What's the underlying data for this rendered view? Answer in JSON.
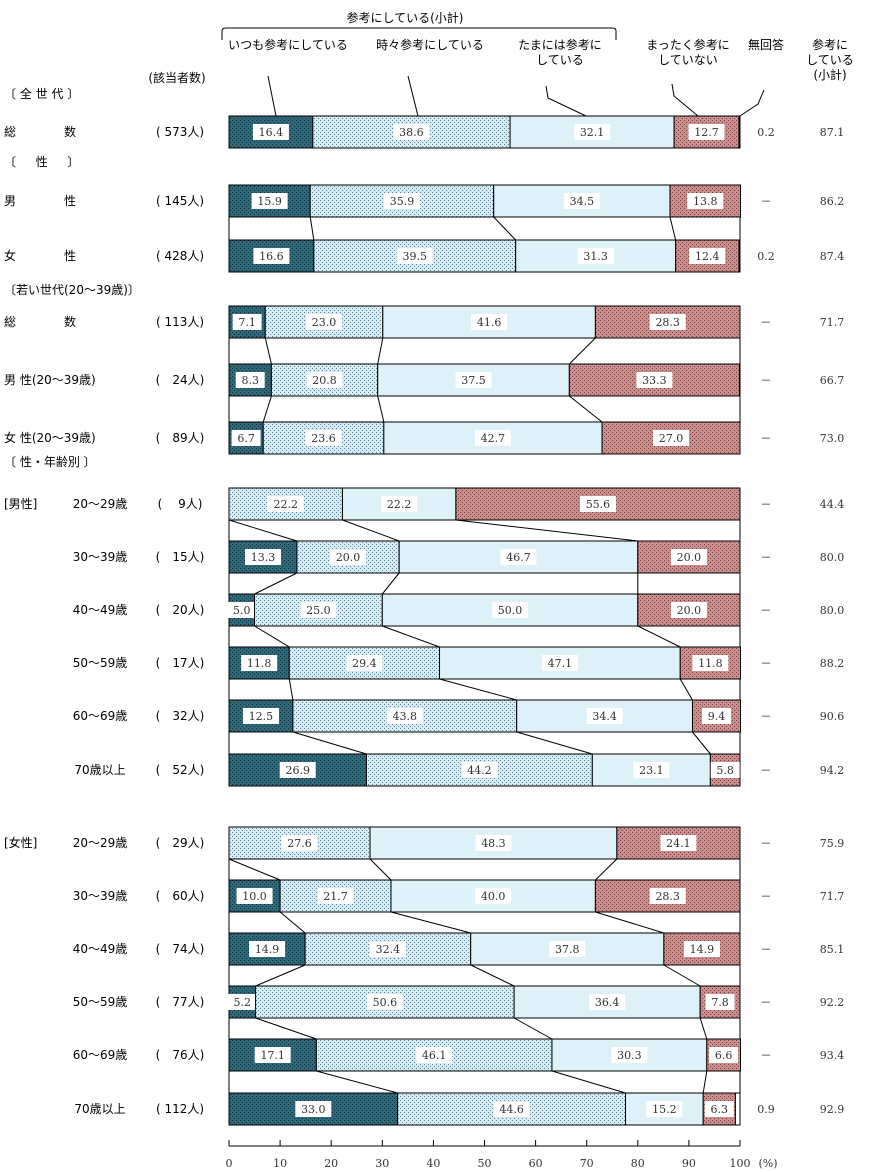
{
  "chart_data": {
    "type": "bar",
    "orientation": "horizontal-stacked-100",
    "subtotal_label": "参考にしている(小計)",
    "legend": [
      "いつも参考にしている",
      "時々参考にしている",
      "たまには参考にしている",
      "まったく参考にしていない",
      "無回答"
    ],
    "legend_wrapped": [
      [
        "いつも参考にしている"
      ],
      [
        "時々参考にしている"
      ],
      [
        "たまには参考に",
        "している"
      ],
      [
        "まったく参考に",
        "していない"
      ],
      [
        "無回答"
      ]
    ],
    "right_header": [
      "参考に",
      "している",
      "(小計)"
    ],
    "count_header": "(該当者数)",
    "xlim": [
      0,
      100
    ],
    "xticks": [
      "0",
      "10",
      "20",
      "30",
      "40",
      "50",
      "60",
      "70",
      "80",
      "90",
      "100"
    ],
    "unit": "(%)",
    "colors": {
      "always": "#2e6a7c",
      "sometimes": "#d6ecf4",
      "occasionally": "#dff1f8",
      "never": "#c98f8f",
      "na": "#ffffff"
    },
    "sections": [
      {
        "label": "〔 全 世 代 〕",
        "group": "",
        "rows": [
          {
            "name": "総　　　　数",
            "count": "( 573人)",
            "values": [
              16.4,
              38.6,
              32.1,
              12.7
            ],
            "na": "0.2",
            "subtotal": "87.1"
          }
        ]
      },
      {
        "label": "〔 　 性 　 〕",
        "group": "",
        "rows": [
          {
            "name": "男　　　　性",
            "count": "( 145人)",
            "values": [
              15.9,
              35.9,
              34.5,
              13.8
            ],
            "na": "－",
            "subtotal": "86.2"
          },
          {
            "name": "女　　　　性",
            "count": "( 428人)",
            "values": [
              16.6,
              39.5,
              31.3,
              12.4
            ],
            "na": "0.2",
            "subtotal": "87.4"
          }
        ]
      },
      {
        "label": "〔若い世代(20～39歳)〕",
        "group": "",
        "rows": [
          {
            "name": "総　　　　数",
            "count": "( 113人)",
            "values": [
              7.1,
              23.0,
              41.6,
              28.3
            ],
            "na": "－",
            "subtotal": "71.7"
          },
          {
            "name": "男 性(20～39歳)",
            "count": "(　24人)",
            "values": [
              8.3,
              20.8,
              37.5,
              33.3
            ],
            "na": "－",
            "subtotal": "66.7"
          },
          {
            "name": "女 性(20～39歳)",
            "count": "(　89人)",
            "values": [
              6.7,
              23.6,
              42.7,
              27.0
            ],
            "na": "－",
            "subtotal": "73.0"
          }
        ]
      },
      {
        "label": "〔 性・年齢別 〕",
        "group": "[男性]",
        "rows": [
          {
            "name": "20～29歳",
            "count": "(　 9人)",
            "values": [
              0,
              22.2,
              22.2,
              55.6
            ],
            "na": "－",
            "subtotal": "44.4"
          },
          {
            "name": "30～39歳",
            "count": "(　15人)",
            "values": [
              13.3,
              20.0,
              46.7,
              20.0
            ],
            "na": "－",
            "subtotal": "80.0"
          },
          {
            "name": "40～49歳",
            "count": "(　20人)",
            "values": [
              5.0,
              25.0,
              50.0,
              20.0
            ],
            "na": "－",
            "subtotal": "80.0"
          },
          {
            "name": "50～59歳",
            "count": "(　17人)",
            "values": [
              11.8,
              29.4,
              47.1,
              11.8
            ],
            "na": "－",
            "subtotal": "88.2"
          },
          {
            "name": "60～69歳",
            "count": "(　32人)",
            "values": [
              12.5,
              43.8,
              34.4,
              9.4
            ],
            "na": "－",
            "subtotal": "90.6"
          },
          {
            "name": "70歳以上",
            "count": "(　52人)",
            "values": [
              26.9,
              44.2,
              23.1,
              5.8
            ],
            "na": "－",
            "subtotal": "94.2"
          }
        ]
      },
      {
        "label": "",
        "group": "[女性]",
        "rows": [
          {
            "name": "20～29歳",
            "count": "(　29人)",
            "values": [
              0,
              27.6,
              48.3,
              24.1
            ],
            "na": "－",
            "subtotal": "75.9"
          },
          {
            "name": "30～39歳",
            "count": "(　60人)",
            "values": [
              10.0,
              21.7,
              40.0,
              28.3
            ],
            "na": "－",
            "subtotal": "71.7"
          },
          {
            "name": "40～49歳",
            "count": "(　74人)",
            "values": [
              14.9,
              32.4,
              37.8,
              14.9
            ],
            "na": "－",
            "subtotal": "85.1"
          },
          {
            "name": "50～59歳",
            "count": "(　77人)",
            "values": [
              5.2,
              50.6,
              36.4,
              7.8
            ],
            "na": "－",
            "subtotal": "92.2"
          },
          {
            "name": "60～69歳",
            "count": "(　76人)",
            "values": [
              17.1,
              46.1,
              30.3,
              6.6
            ],
            "na": "－",
            "subtotal": "93.4"
          },
          {
            "name": "70歳以上",
            "count": "( 112人)",
            "values": [
              33.0,
              44.6,
              15.2,
              6.3
            ],
            "na": "0.9",
            "subtotal": "92.9"
          }
        ]
      }
    ]
  }
}
